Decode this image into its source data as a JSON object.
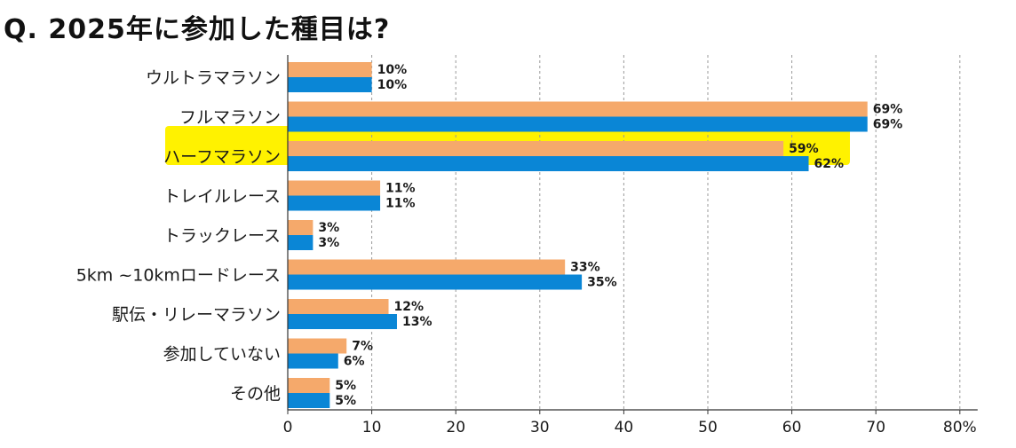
{
  "chart_data": {
    "type": "bar",
    "orientation": "horizontal",
    "title": "Q.  2025年に参加した種目は?",
    "categories": [
      "ウルトラマラソン",
      "フルマラソン",
      "ハーフマラソン",
      "トレイルレース",
      "トラックレース",
      "5km ~10kmロードレース",
      "駅伝・リレーマラソン",
      "参加していない",
      "その他"
    ],
    "series": [
      {
        "values": [
          10,
          69,
          59,
          11,
          3,
          33,
          12,
          7,
          5
        ],
        "color": "#F5A96B"
      },
      {
        "values": [
          10,
          69,
          62,
          11,
          3,
          35,
          13,
          6,
          5
        ],
        "color": "#0A86D6"
      }
    ],
    "data_label_suffix": "%",
    "highlight_category": "ハーフマラソン",
    "highlight_color": "#FFF200",
    "xlim": [
      0,
      80
    ],
    "xticks": [
      "0",
      "10",
      "20",
      "30",
      "40",
      "50",
      "60",
      "70",
      "80%"
    ],
    "xlabel": "",
    "ylabel": "",
    "grid": "vertical dashed",
    "legend": "none"
  }
}
